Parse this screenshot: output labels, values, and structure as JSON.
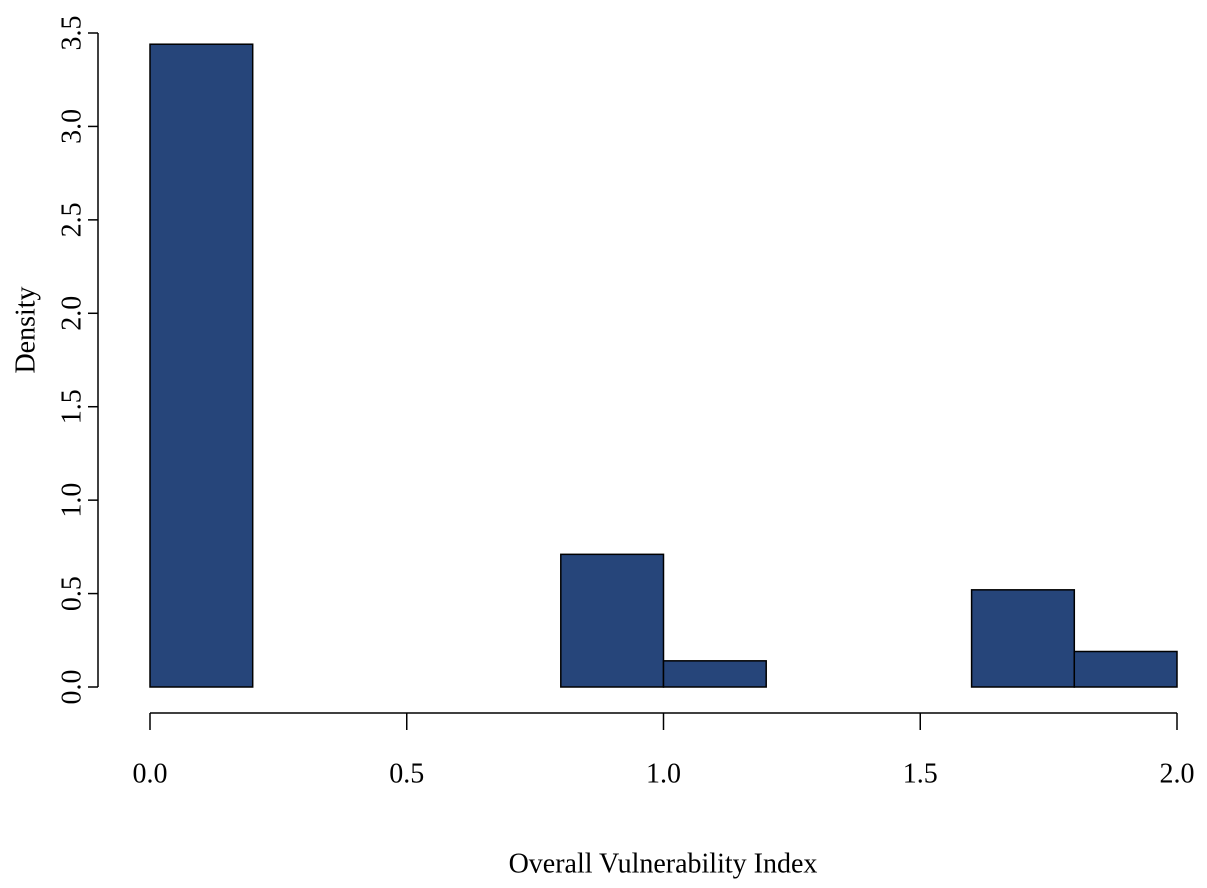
{
  "chart_data": {
    "type": "histogram",
    "xlabel": "Overall Vulnerability Index",
    "ylabel": "Density",
    "bins": [
      0,
      0.2,
      0.4,
      0.6,
      0.8,
      1.0,
      1.2,
      1.4,
      1.6,
      1.8,
      2.0
    ],
    "values": [
      3.44,
      0,
      0,
      0,
      0.71,
      0.14,
      0,
      0,
      0.52,
      0.19
    ],
    "color": "#26457a",
    "xlim": [
      0,
      2
    ],
    "ylim": [
      0,
      3.5
    ],
    "xticks": [
      {
        "value": 0,
        "label": "0.0"
      },
      {
        "value": 0.5,
        "label": "0.5"
      },
      {
        "value": 1,
        "label": "1.0"
      },
      {
        "value": 1.5,
        "label": "1.5"
      },
      {
        "value": 2,
        "label": "2.0"
      }
    ],
    "yticks": [
      {
        "value": 0,
        "label": "0.0"
      },
      {
        "value": 0.5,
        "label": "0.5"
      },
      {
        "value": 1,
        "label": "1.0"
      },
      {
        "value": 1.5,
        "label": "1.5"
      },
      {
        "value": 2,
        "label": "2.0"
      },
      {
        "value": 2.5,
        "label": "2.5"
      },
      {
        "value": 3,
        "label": "3.0"
      },
      {
        "value": 3.5,
        "label": "3.5"
      }
    ],
    "grid": false
  }
}
